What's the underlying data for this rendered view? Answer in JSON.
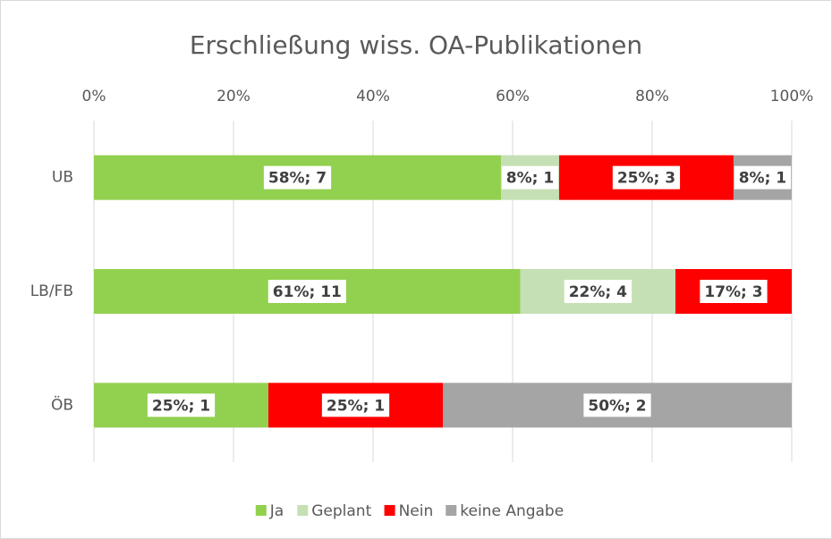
{
  "chart_data": {
    "type": "stacked_barh",
    "title": "Erschließung wiss. OA-Publikationen",
    "categories": [
      "UB",
      "LB/FB",
      "ÖB"
    ],
    "series": [
      {
        "name": "Ja",
        "color": "#92d050",
        "values": [
          58.33,
          61.11,
          25
        ],
        "value_labels": [
          "58%; 7",
          "61%; 11",
          "25%; 1"
        ]
      },
      {
        "name": "Geplant",
        "color": "#c5e0b4",
        "values": [
          8.33,
          22.22,
          0
        ],
        "value_labels": [
          "8%; 1",
          "22%; 4",
          null
        ]
      },
      {
        "name": "Nein",
        "color": "#ff0000",
        "values": [
          25,
          16.67,
          25
        ],
        "value_labels": [
          "25%; 3",
          "17%; 3",
          "25%; 1"
        ]
      },
      {
        "name": "keine Angabe",
        "color": "#a5a5a5",
        "values": [
          8.33,
          0,
          50
        ],
        "value_labels": [
          "8%; 1",
          null,
          "50%; 2"
        ]
      }
    ],
    "xlim": [
      0,
      100
    ],
    "xticks": [
      {
        "value": 0,
        "label": "0%"
      },
      {
        "value": 20,
        "label": "20%"
      },
      {
        "value": 40,
        "label": "40%"
      },
      {
        "value": 60,
        "label": "60%"
      },
      {
        "value": 80,
        "label": "80%"
      },
      {
        "value": 100,
        "label": "100%"
      }
    ],
    "grid": true,
    "legend": "bottom"
  }
}
